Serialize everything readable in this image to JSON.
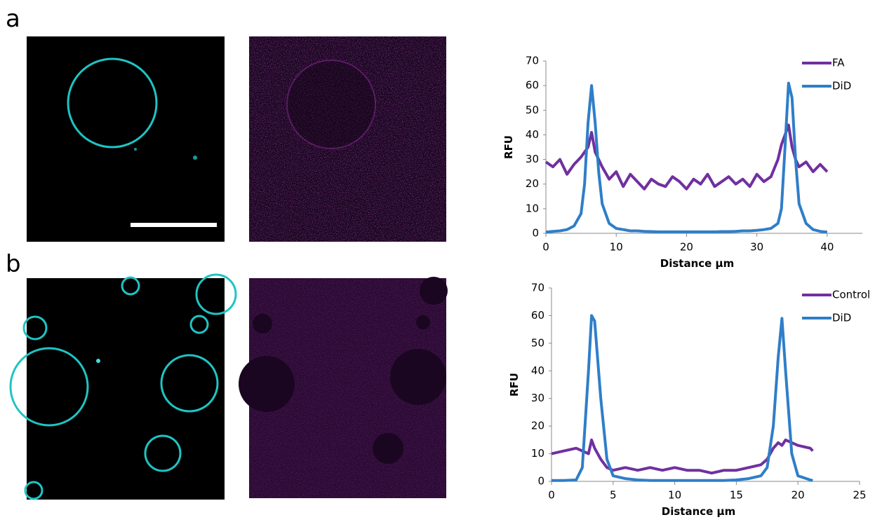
{
  "panel_labels": [
    "a",
    "b"
  ],
  "chart_data": [
    {
      "type": "line",
      "x_label": "Distance µm",
      "y_label": "RFU",
      "x": [
        0,
        1,
        2,
        3,
        4,
        5,
        5.5,
        6,
        6.5,
        7,
        7.5,
        8,
        9,
        10,
        11,
        12,
        13,
        14,
        15,
        16,
        17,
        18,
        19,
        20,
        21,
        22,
        23,
        24,
        25,
        26,
        27,
        28,
        29,
        30,
        31,
        32,
        33,
        33.5,
        34,
        34.5,
        35,
        35.5,
        36,
        37,
        38,
        39,
        40
      ],
      "series": [
        {
          "name": "FA",
          "color": "#7030a0",
          "values": [
            29,
            27,
            30,
            24,
            28,
            31,
            33,
            35,
            41,
            33,
            30,
            27,
            22,
            25,
            19,
            24,
            21,
            18,
            22,
            20,
            19,
            23,
            21,
            18,
            22,
            20,
            24,
            19,
            21,
            23,
            20,
            22,
            19,
            24,
            21,
            23,
            30,
            36,
            40,
            44,
            35,
            30,
            27,
            29,
            25,
            28,
            25
          ]
        },
        {
          "name": "DiD",
          "color": "#2f7ec8",
          "values": [
            0.5,
            0.8,
            1,
            1.5,
            3,
            8,
            20,
            45,
            60,
            45,
            25,
            12,
            4,
            2,
            1.5,
            1,
            1,
            0.8,
            0.7,
            0.6,
            0.6,
            0.6,
            0.6,
            0.6,
            0.6,
            0.6,
            0.6,
            0.6,
            0.7,
            0.7,
            0.8,
            1,
            1,
            1.2,
            1.5,
            2,
            4,
            10,
            35,
            61,
            55,
            30,
            12,
            4,
            1.5,
            0.8,
            0.5
          ]
        }
      ],
      "xlim": [
        0,
        45
      ],
      "xticks": [
        0,
        10,
        20,
        30,
        40
      ],
      "ylim": [
        0,
        70
      ],
      "yticks": [
        0,
        10,
        20,
        30,
        40,
        50,
        60,
        70
      ],
      "legend": "upper right"
    },
    {
      "type": "line",
      "x_label": "Distance µm",
      "y_label": "RFU",
      "x": [
        0,
        1,
        2,
        2.5,
        3,
        3.25,
        3.5,
        4,
        4.5,
        5,
        6,
        7,
        8,
        9,
        10,
        11,
        12,
        13,
        14,
        15,
        16,
        17,
        17.5,
        18,
        18.4,
        18.7,
        19,
        19.5,
        20,
        21,
        21.2
      ],
      "series": [
        {
          "name": "Control",
          "color": "#7030a0",
          "values": [
            10,
            11,
            12,
            11,
            10,
            15,
            12,
            8,
            5,
            4,
            5,
            4,
            5,
            4,
            5,
            4,
            4,
            3,
            4,
            4,
            5,
            6,
            8,
            12,
            14,
            13,
            15,
            14,
            13,
            12,
            11
          ]
        },
        {
          "name": "DiD",
          "color": "#2f7ec8",
          "values": [
            0.3,
            0.3,
            0.5,
            5,
            40,
            60,
            58,
            30,
            8,
            2,
            1,
            0.5,
            0.3,
            0.3,
            0.3,
            0.3,
            0.3,
            0.3,
            0.3,
            0.5,
            1,
            2,
            5,
            20,
            45,
            59,
            40,
            10,
            2,
            0.5,
            0.3
          ]
        }
      ],
      "xlim": [
        0,
        25
      ],
      "xticks": [
        0,
        5,
        10,
        15,
        20,
        25
      ],
      "ylim": [
        0,
        70
      ],
      "yticks": [
        0,
        10,
        20,
        30,
        40,
        50,
        60,
        70
      ],
      "legend": "upper right"
    }
  ]
}
